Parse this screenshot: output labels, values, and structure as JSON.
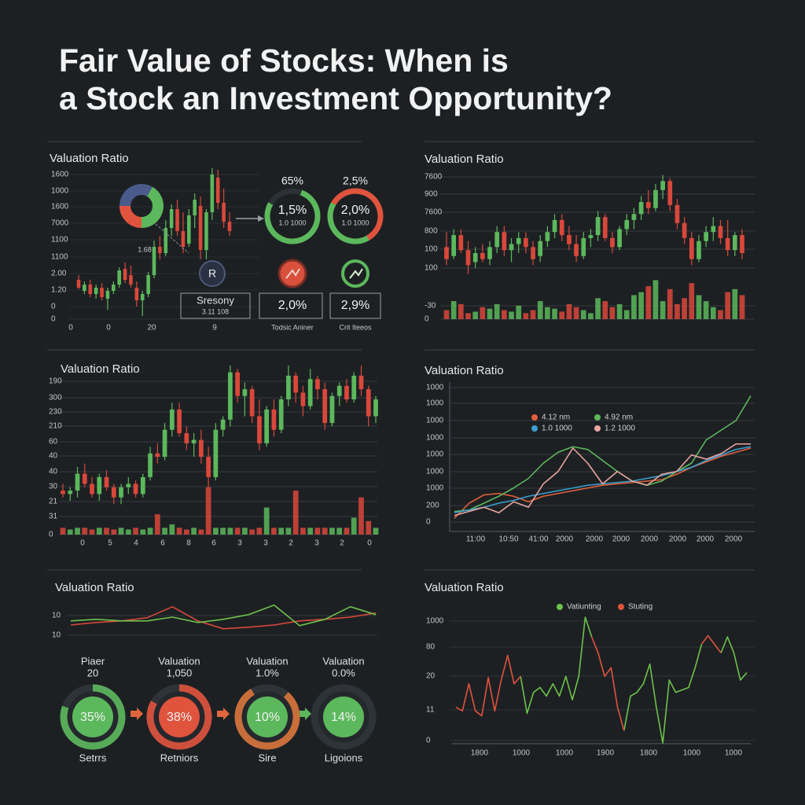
{
  "title": [
    "Fair Value of Stocks: When is",
    "a Stock an Investment Opportunity?"
  ],
  "chart_data": [
    {
      "type": "candlestick",
      "title": "Valuation Ratio",
      "ylabels": [
        "1600",
        "1000",
        "1600",
        "7000",
        "1100",
        "1100",
        "2.00",
        "1.20",
        "0",
        "0"
      ],
      "xlabels": [
        "0",
        "0",
        "20",
        "9"
      ],
      "ylim": [
        0,
        100
      ],
      "up_color": "#5cb85c",
      "down_color": "#d9483b",
      "ohlc": [
        [
          27,
          30,
          21,
          22
        ],
        [
          20,
          26,
          18,
          24
        ],
        [
          24,
          27,
          16,
          18
        ],
        [
          18,
          24,
          15,
          22
        ],
        [
          22,
          25,
          14,
          16
        ],
        [
          15,
          22,
          8,
          20
        ],
        [
          20,
          26,
          18,
          24
        ],
        [
          24,
          35,
          22,
          33
        ],
        [
          34,
          38,
          25,
          27
        ],
        [
          30,
          36,
          22,
          24
        ],
        [
          22,
          26,
          10,
          14
        ],
        [
          14,
          20,
          4,
          18
        ],
        [
          18,
          32,
          16,
          30
        ],
        [
          30,
          52,
          28,
          48
        ],
        [
          48,
          55,
          40,
          44
        ],
        [
          44,
          65,
          42,
          60
        ],
        [
          60,
          75,
          55,
          72
        ],
        [
          72,
          78,
          55,
          58
        ],
        [
          58,
          70,
          44,
          48
        ],
        [
          50,
          72,
          48,
          68
        ],
        [
          68,
          82,
          60,
          78
        ],
        [
          74,
          80,
          40,
          46
        ],
        [
          46,
          72,
          40,
          70
        ],
        [
          70,
          98,
          65,
          94
        ],
        [
          92,
          97,
          72,
          76
        ],
        [
          76,
          85,
          60,
          64
        ],
        [
          64,
          70,
          55,
          58
        ]
      ],
      "annotations": {
        "donut_label": "1.68",
        "badge": "R",
        "box": [
          "Sresony",
          "3.11 108"
        ],
        "rings": [
          {
            "top": "65%",
            "main": "1,5%",
            "sub": "1.0 1000"
          },
          {
            "top": "2,5%",
            "main": "2,0%",
            "sub": "1.0 1000"
          }
        ],
        "boxes": [
          "2,0%",
          "2,9%"
        ],
        "captions": [
          "Todsic Aniner",
          "Crit Iteeos"
        ]
      }
    },
    {
      "type": "candlestick",
      "title": "Valuation Ratio",
      "ylabels": [
        "7600",
        "900",
        "7600",
        "800",
        "100",
        "100",
        "-30",
        "0"
      ],
      "ylim": [
        0,
        100
      ],
      "up_color": "#5cb85c",
      "down_color": "#d9483b",
      "ohlc": [
        [
          48,
          58,
          36,
          40
        ],
        [
          42,
          60,
          40,
          56
        ],
        [
          56,
          60,
          44,
          46
        ],
        [
          46,
          52,
          30,
          36
        ],
        [
          38,
          48,
          34,
          44
        ],
        [
          44,
          50,
          38,
          40
        ],
        [
          40,
          52,
          36,
          48
        ],
        [
          48,
          62,
          44,
          58
        ],
        [
          58,
          62,
          42,
          46
        ],
        [
          46,
          54,
          38,
          50
        ],
        [
          50,
          58,
          44,
          54
        ],
        [
          54,
          58,
          44,
          48
        ],
        [
          48,
          52,
          36,
          40
        ],
        [
          42,
          56,
          38,
          52
        ],
        [
          52,
          62,
          48,
          58
        ],
        [
          58,
          70,
          54,
          66
        ],
        [
          66,
          70,
          52,
          56
        ],
        [
          56,
          62,
          46,
          50
        ],
        [
          50,
          56,
          38,
          42
        ],
        [
          42,
          58,
          40,
          54
        ],
        [
          54,
          60,
          48,
          56
        ],
        [
          56,
          72,
          52,
          68
        ],
        [
          68,
          70,
          52,
          54
        ],
        [
          54,
          58,
          44,
          48
        ],
        [
          48,
          62,
          46,
          60
        ],
        [
          60,
          70,
          56,
          66
        ],
        [
          66,
          74,
          60,
          70
        ],
        [
          70,
          82,
          66,
          78
        ],
        [
          78,
          86,
          70,
          74
        ],
        [
          74,
          90,
          72,
          86
        ],
        [
          86,
          96,
          80,
          92
        ],
        [
          92,
          94,
          72,
          76
        ],
        [
          76,
          80,
          60,
          64
        ],
        [
          64,
          68,
          50,
          54
        ],
        [
          54,
          58,
          36,
          40
        ],
        [
          40,
          56,
          38,
          52
        ],
        [
          52,
          62,
          48,
          58
        ],
        [
          58,
          68,
          52,
          62
        ],
        [
          62,
          66,
          50,
          54
        ],
        [
          54,
          66,
          42,
          46
        ],
        [
          46,
          58,
          42,
          56
        ],
        [
          56,
          60,
          40,
          44
        ]
      ],
      "volume": [
        6,
        12,
        10,
        4,
        5,
        8,
        7,
        10,
        6,
        5,
        9,
        4,
        6,
        12,
        8,
        7,
        5,
        10,
        8,
        6,
        4,
        14,
        12,
        8,
        10,
        6,
        16,
        18,
        22,
        26,
        12,
        20,
        10,
        14,
        24,
        16,
        12,
        8,
        6,
        18,
        20,
        16
      ]
    },
    {
      "type": "candlestick",
      "title": "Valuation Ratio",
      "ylabels": [
        "190",
        "300",
        "230",
        "210",
        "60",
        "40",
        "40",
        "30",
        "21",
        "31",
        "0"
      ],
      "xlabels": [
        "0",
        "5",
        "4",
        "6",
        "8",
        "6",
        "3",
        "3",
        "2",
        "3",
        "2",
        "0"
      ],
      "ylim": [
        0,
        100
      ],
      "up_color": "#5cb85c",
      "down_color": "#d9483b",
      "ohlc": [
        [
          26,
          30,
          22,
          24
        ],
        [
          24,
          28,
          20,
          26
        ],
        [
          26,
          40,
          22,
          36
        ],
        [
          36,
          42,
          28,
          30
        ],
        [
          30,
          34,
          22,
          24
        ],
        [
          24,
          36,
          20,
          34
        ],
        [
          34,
          38,
          26,
          28
        ],
        [
          28,
          30,
          18,
          22
        ],
        [
          22,
          30,
          18,
          28
        ],
        [
          28,
          34,
          24,
          30
        ],
        [
          30,
          32,
          22,
          24
        ],
        [
          24,
          36,
          22,
          34
        ],
        [
          34,
          52,
          32,
          48
        ],
        [
          48,
          54,
          42,
          46
        ],
        [
          46,
          66,
          44,
          62
        ],
        [
          62,
          78,
          58,
          74
        ],
        [
          74,
          78,
          58,
          60
        ],
        [
          60,
          64,
          50,
          54
        ],
        [
          54,
          60,
          46,
          56
        ],
        [
          56,
          62,
          42,
          46
        ],
        [
          46,
          52,
          28,
          34
        ],
        [
          34,
          66,
          32,
          62
        ],
        [
          62,
          70,
          58,
          68
        ],
        [
          68,
          100,
          64,
          96
        ],
        [
          96,
          98,
          78,
          82
        ],
        [
          82,
          90,
          70,
          86
        ],
        [
          86,
          88,
          66,
          70
        ],
        [
          70,
          80,
          50,
          54
        ],
        [
          54,
          76,
          52,
          74
        ],
        [
          74,
          80,
          58,
          62
        ],
        [
          62,
          82,
          60,
          80
        ],
        [
          80,
          100,
          76,
          94
        ],
        [
          94,
          96,
          78,
          84
        ],
        [
          84,
          88,
          70,
          76
        ],
        [
          76,
          98,
          74,
          92
        ],
        [
          92,
          94,
          80,
          86
        ],
        [
          86,
          90,
          62,
          66
        ],
        [
          66,
          84,
          64,
          82
        ],
        [
          82,
          90,
          76,
          88
        ],
        [
          88,
          92,
          78,
          80
        ],
        [
          80,
          96,
          78,
          94
        ],
        [
          94,
          100,
          82,
          86
        ],
        [
          86,
          88,
          64,
          70
        ],
        [
          70,
          82,
          66,
          80
        ]
      ],
      "volume": [
        4,
        3,
        4,
        4,
        3,
        4,
        4,
        3,
        4,
        3,
        4,
        3,
        4,
        12,
        4,
        6,
        4,
        3,
        4,
        3,
        28,
        4,
        4,
        4,
        4,
        4,
        3,
        4,
        16,
        4,
        4,
        4,
        26,
        4,
        4,
        4,
        4,
        4,
        4,
        4,
        10,
        22,
        8,
        4
      ]
    },
    {
      "type": "line",
      "title": "Valuation Ratio",
      "ylabels": [
        "1000",
        "1000",
        "1000",
        "1000",
        "1000",
        "1000",
        "1000",
        "200",
        "0"
      ],
      "xlabels": [
        "11:00",
        "10:50",
        "41:00",
        "2000",
        "2000",
        "2000",
        "2000",
        "2000",
        "2000",
        "2000"
      ],
      "ylim": [
        0,
        100
      ],
      "series": [
        {
          "name": "4.12 nm",
          "color": "#e2603c",
          "values": [
            5,
            16,
            22,
            23,
            21,
            17,
            21,
            23,
            25,
            27,
            29,
            30,
            31,
            32,
            33,
            37,
            42,
            46,
            50,
            53,
            56
          ]
        },
        {
          "name": "4.92 nm",
          "color": "#5cb85c",
          "values": [
            10,
            11,
            16,
            21,
            27,
            34,
            45,
            53,
            57,
            55,
            47,
            39,
            32,
            29,
            32,
            39,
            45,
            62,
            69,
            76,
            94
          ]
        },
        {
          "name": "1.0 1000",
          "color": "#3a9fd0",
          "values": [
            9,
            11,
            13,
            16,
            18,
            21,
            23,
            25,
            27,
            29,
            30,
            31,
            32,
            34,
            36,
            39,
            42,
            47,
            51,
            55,
            57
          ]
        },
        {
          "name": "1.2 1000",
          "color": "#e8a6a0",
          "values": [
            7,
            10,
            13,
            9,
            17,
            13,
            30,
            39,
            56,
            45,
            30,
            39,
            32,
            29,
            37,
            39,
            51,
            48,
            52,
            59,
            59
          ]
        }
      ]
    },
    {
      "type": "line",
      "title": "Valuation Ratio",
      "ylabels": [
        "10",
        "10"
      ],
      "ylim": [
        0,
        100
      ],
      "series": [
        {
          "color": "#d9483b",
          "values": [
            25,
            33,
            38,
            48,
            83,
            38,
            13,
            18,
            25,
            38,
            43,
            50,
            63
          ]
        },
        {
          "color": "#6cc24a",
          "values": [
            38,
            43,
            38,
            38,
            50,
            33,
            43,
            58,
            88,
            23,
            43,
            83,
            58
          ]
        }
      ],
      "gauges": [
        {
          "title": [
            "Piaer",
            "20"
          ],
          "value": "35%",
          "label": "Setrrs",
          "color": "#5cb85c"
        },
        {
          "title": [
            "Valuation",
            "1,050"
          ],
          "value": "38%",
          "label": "Retniors",
          "color": "#e0533d"
        },
        {
          "title": [
            "Valuation",
            "1.0%"
          ],
          "value": "10%",
          "label": "Sire",
          "color": "#5cb85c"
        },
        {
          "title": [
            "Valuation",
            "0.0%"
          ],
          "value": "14%",
          "label": "Ligoions",
          "color": "#5cb85c"
        }
      ]
    },
    {
      "type": "line",
      "title": "Valuation Ratio",
      "ylabels": [
        "1000",
        "80",
        "20",
        "11",
        "0"
      ],
      "xlabels": [
        "1800",
        "1000",
        "1000",
        "1900",
        "1800",
        "1000",
        "1000"
      ],
      "ylim": [
        0,
        100
      ],
      "series": [
        {
          "name": "Vatiunting",
          "color": "#6cc24a",
          "values": [
            null,
            null,
            null,
            null,
            null,
            null,
            null,
            null,
            null,
            null,
            52,
            22,
            39,
            43,
            36,
            46,
            36,
            52,
            33,
            52,
            100,
            84,
            null,
            null,
            null,
            null,
            8,
            36,
            39,
            46,
            62,
            27,
            -2,
            49,
            39,
            41,
            43,
            59,
            78,
            null,
            null,
            71,
            84,
            71,
            49,
            55
          ]
        },
        {
          "name": "Stuting",
          "color": "#e0533d",
          "values": [
            27,
            24,
            46,
            24,
            20,
            51,
            24,
            49,
            69,
            46,
            52,
            null,
            null,
            null,
            null,
            null,
            null,
            null,
            null,
            null,
            null,
            84,
            71,
            52,
            59,
            27,
            8,
            null,
            null,
            null,
            null,
            null,
            null,
            null,
            null,
            null,
            null,
            null,
            78,
            85,
            78,
            71,
            null,
            null,
            null,
            null
          ]
        }
      ]
    }
  ]
}
